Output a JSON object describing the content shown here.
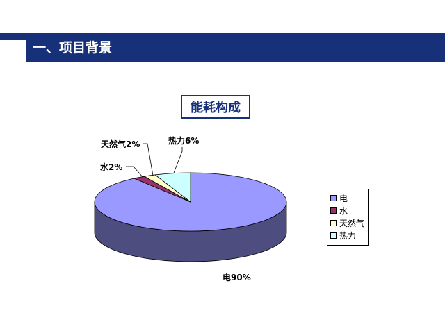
{
  "header": {
    "title": "一、项目背景"
  },
  "colors": {
    "header": "#16307a"
  },
  "chart_data": {
    "type": "pie",
    "title": "能耗构成",
    "categories": [
      "电",
      "水",
      "天然气",
      "热力"
    ],
    "values": [
      90,
      2,
      2,
      6
    ],
    "data_labels": [
      "电90%",
      "水2%",
      "天然气2%",
      "热力6%"
    ],
    "colors": [
      "#9999ff",
      "#993366",
      "#ffffcc",
      "#ccffff"
    ],
    "side_colors": [
      "#4d4d80",
      "#4d1a33",
      "#808066",
      "#668080"
    ],
    "legend": "right"
  }
}
